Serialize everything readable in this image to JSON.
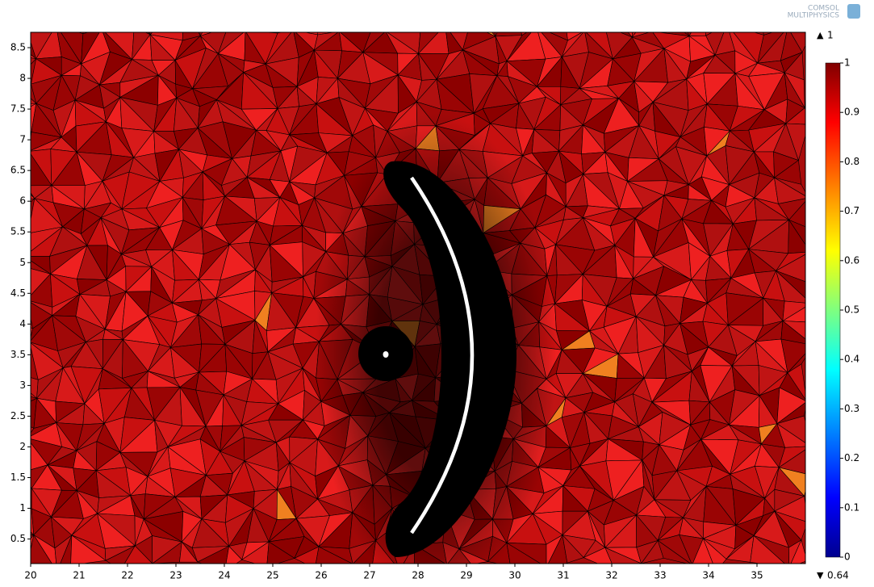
{
  "chart_data": {
    "type": "mesh",
    "logo": [
      "COMSOL",
      "MULTIPHYSICS"
    ],
    "xlim": [
      20,
      36
    ],
    "xticks": [
      20,
      21,
      22,
      23,
      24,
      25,
      26,
      27,
      28,
      29,
      30,
      31,
      32,
      33,
      34,
      35
    ],
    "ylim": [
      0.1,
      8.75
    ],
    "yticks": [
      0.5,
      1,
      1.5,
      2,
      2.5,
      3,
      3.5,
      4,
      4.5,
      5,
      5.5,
      6,
      6.5,
      7,
      7.5,
      8,
      8.5
    ],
    "colorbar": {
      "lim": [
        0,
        1
      ],
      "ticks": [
        0,
        0.1,
        0.2,
        0.3,
        0.4,
        0.5,
        0.6,
        0.7,
        0.8,
        0.9,
        1
      ],
      "max": 1,
      "min": 0.64
    }
  }
}
